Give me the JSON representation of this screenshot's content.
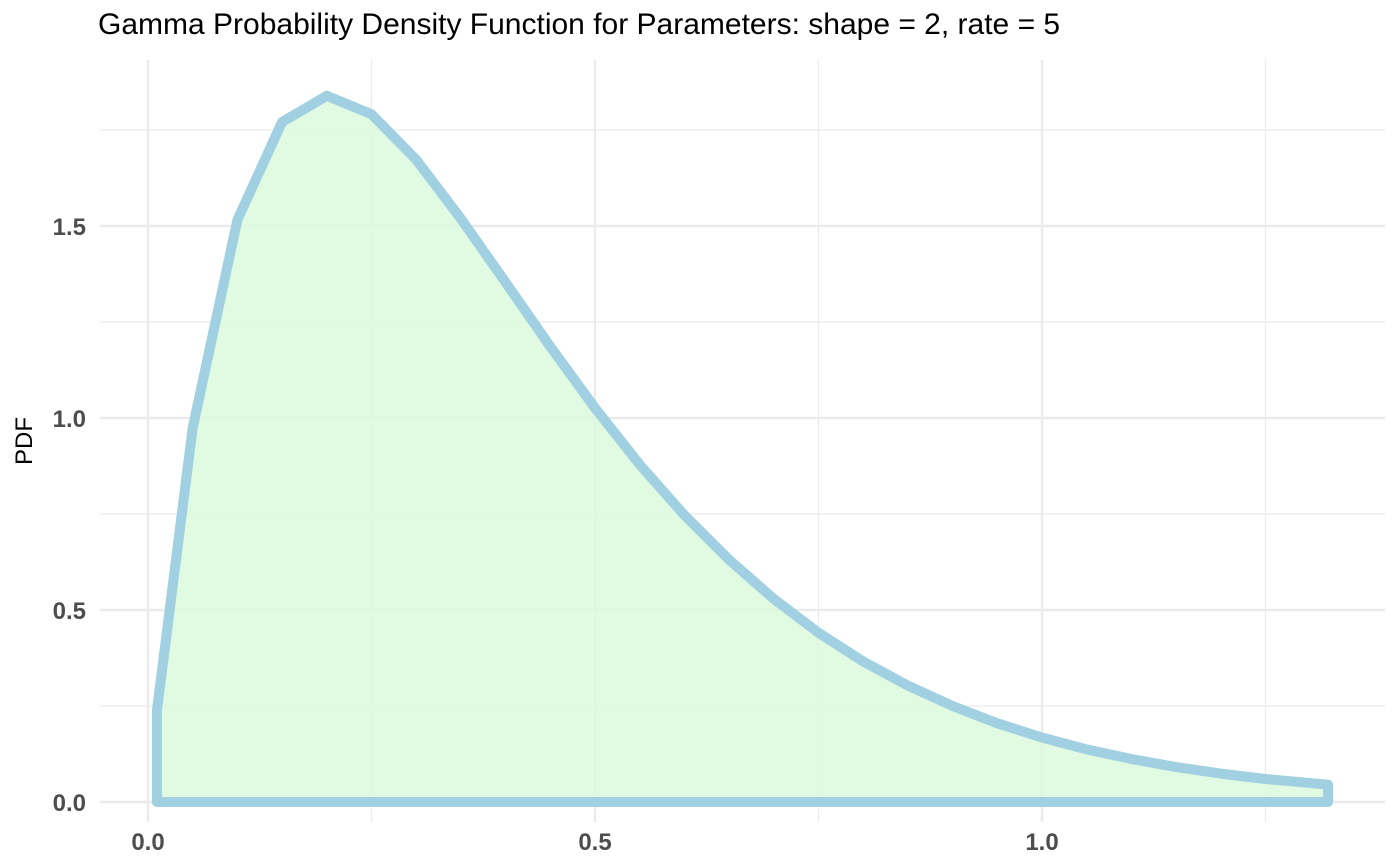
{
  "chart_data": {
    "type": "area",
    "title": "Gamma Probability Density Function for Parameters:  shape = 2, rate = 5",
    "xlabel": "",
    "ylabel": "PDF",
    "xlim": [
      0.01,
      1.32
    ],
    "ylim": [
      0,
      1.84
    ],
    "x_ticks": [
      {
        "value": 0.0,
        "label": "0.0"
      },
      {
        "value": 0.5,
        "label": "0.5"
      },
      {
        "value": 1.0,
        "label": "1.0"
      }
    ],
    "y_ticks": [
      {
        "value": 0.0,
        "label": "0.0"
      },
      {
        "value": 0.5,
        "label": "0.5"
      },
      {
        "value": 1.0,
        "label": "1.0"
      },
      {
        "value": 1.5,
        "label": "1.5"
      }
    ],
    "x_minor_ticks": [
      0.25,
      0.75,
      1.25
    ],
    "y_minor_ticks": [
      0.25,
      0.75,
      1.25,
      1.75
    ],
    "grid": true,
    "legend": "none",
    "distribution": {
      "shape": 2,
      "rate": 5
    },
    "series": [
      {
        "x": [
          0.01,
          0.05,
          0.1,
          0.15,
          0.2,
          0.25,
          0.3,
          0.35,
          0.4,
          0.45,
          0.5,
          0.55,
          0.6,
          0.65,
          0.7,
          0.75,
          0.8,
          0.85,
          0.9,
          0.95,
          1.0,
          1.05,
          1.1,
          1.15,
          1.2,
          1.25,
          1.32
        ],
        "y": [
          0.238,
          0.974,
          1.516,
          1.771,
          1.839,
          1.791,
          1.673,
          1.519,
          1.353,
          1.186,
          1.026,
          0.879,
          0.747,
          0.631,
          0.529,
          0.441,
          0.366,
          0.303,
          0.25,
          0.205,
          0.168,
          0.137,
          0.112,
          0.091,
          0.074,
          0.06,
          0.045
        ]
      }
    ],
    "colors": {
      "fill": "#dcf9dd",
      "line": "#a0d0e2",
      "grid": "#ebebeb",
      "tick_label": "#4d4d4d"
    }
  }
}
